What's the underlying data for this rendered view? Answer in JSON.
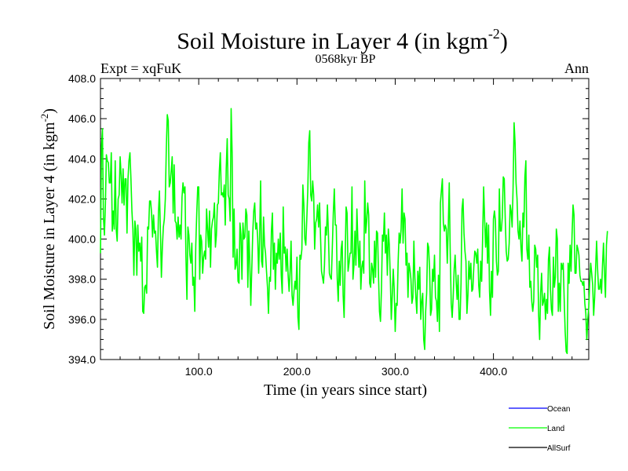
{
  "chart_data": {
    "type": "line",
    "title": "Soil Moisture in Layer 4 (in kgm",
    "title_sup": "-2",
    "title_close": ")",
    "subtitle_left": "Expt = xqFuK",
    "subtitle_center": "0568kyr BP",
    "subtitle_right": "Ann",
    "xlabel": "Time (in years since start)",
    "ylabel": "Soil Moisture in Layer 4 (in kgm",
    "ylabel_sup": "-2",
    "ylabel_close": ")",
    "xlim": [
      0,
      497
    ],
    "ylim": [
      394,
      408
    ],
    "x_ticks": [
      100,
      200,
      300,
      400
    ],
    "x_tick_labels": [
      "100.0",
      "200.0",
      "300.0",
      "400.0"
    ],
    "y_ticks": [
      394,
      396,
      398,
      400,
      402,
      404,
      406,
      408
    ],
    "y_tick_labels": [
      "394.0",
      "396.0",
      "398.0",
      "400.0",
      "402.0",
      "404.0",
      "406.0",
      "408.0"
    ],
    "legend": [
      {
        "name": "Ocean",
        "color": "#0000ff"
      },
      {
        "name": "Land",
        "color": "#00ff00"
      },
      {
        "name": "AllSurf",
        "color": "#000000"
      }
    ],
    "series": [
      {
        "name": "Land",
        "color": "#00ff00",
        "x_start": 0,
        "x_step": 1,
        "values": [
          399.3,
          404.6,
          405.5,
          401.1,
          400.2,
          401.7,
          404.2,
          403.9,
          403.8,
          402.8,
          402.8,
          404.3,
          400.4,
          401.4,
          400.5,
          403.9,
          400.5,
          399.9,
          402.0,
          402.2,
          404.1,
          403.2,
          401.8,
          403.5,
          401.7,
          403.0,
          403.0,
          400.3,
          403.0,
          403.9,
          404.3,
          403.0,
          401.4,
          400.5,
          398.2,
          400.9,
          400.5,
          398.2,
          400.7,
          399.4,
          399.8,
          398.9,
          400.1,
          396.4,
          396.3,
          397.6,
          397.7,
          397.3,
          400.6,
          400.5,
          401.9,
          401.9,
          401.3,
          400.1,
          401.2,
          400.3,
          400.4,
          399.4,
          398.6,
          401.3,
          402.4,
          400.4,
          398.1,
          399.6,
          400.6,
          401.0,
          402.0,
          404.5,
          406.2,
          405.9,
          402.6,
          402.8,
          403.4,
          404.1,
          401.3,
          403.7,
          400.9,
          400.8,
          400.0,
          401.1,
          400.1,
          400.7,
          400.0,
          402.1,
          402.8,
          402.3,
          402.6,
          399.1,
          397.0,
          400.6,
          400.2,
          399.2,
          398.8,
          399.8,
          397.7,
          398.1,
          396.4,
          399.7,
          401.3,
          402.6,
          402.6,
          398.0,
          400.2,
          399.9,
          398.3,
          399.1,
          399.4,
          399.0,
          401.5,
          400.5,
          399.6,
          401.4,
          398.6,
          400.5,
          400.9,
          401.1,
          401.8,
          399.6,
          400.2,
          401.7,
          401.8,
          403.4,
          404.3,
          402.2,
          402.3,
          402.1,
          402.7,
          400.7,
          403.5,
          405.0,
          402.2,
          402.0,
          400.9,
          406.5,
          404.3,
          399.1,
          401.5,
          398.5,
          398.7,
          399.5,
          397.9,
          397.8,
          400.8,
          400.2,
          398.0,
          400.8,
          400.0,
          400.1,
          401.5,
          401.2,
          397.6,
          400.4,
          398.8,
          396.7,
          398.5,
          400.3,
          401.4,
          401.8,
          400.5,
          400.8,
          400.1,
          398.3,
          400.1,
          402.9,
          398.9,
          398.6,
          401.1,
          399.7,
          399.3,
          398.4,
          397.6,
          396.3,
          398.1,
          397.9,
          400.4,
          401.3,
          398.5,
          399.8,
          397.5,
          399.3,
          398.8,
          400.0,
          399.0,
          400.3,
          398.2,
          397.3,
          401.6,
          399.3,
          399.6,
          398.4,
          399.5,
          398.2,
          397.4,
          398.4,
          399.9,
          397.2,
          396.7,
          397.4,
          397.9,
          397.5,
          399.1,
          396.1,
          395.5,
          399.2,
          399.0,
          399.5,
          402.7,
          401.7,
          400.0,
          399.7,
          401.0,
          402.4,
          404.8,
          405.4,
          402.2,
          401.9,
          402.9,
          402.2,
          399.5,
          400.8,
          401.0,
          401.7,
          400.6,
          401.8,
          400.1,
          398.4,
          398.1,
          397.8,
          398.7,
          400.6,
          400.2,
          401.7,
          400.3,
          398.3,
          398.1,
          398.0,
          399.6,
          401.3,
          402.5,
          400.7,
          400.7,
          398.0,
          396.9,
          398.9,
          397.7,
          399.5,
          399.9,
          397.2,
          396.1,
          398.9,
          401.6,
          401.3,
          398.4,
          398.8,
          399.3,
          399.3,
          402.6,
          398.0,
          398.7,
          400.4,
          398.7,
          401.5,
          399.9,
          398.6,
          399.9,
          397.5,
          398.6,
          398.9,
          398.3,
          402.9,
          400.3,
          400.9,
          401.8,
          401.2,
          397.8,
          397.6,
          398.8,
          398.5,
          397.8,
          399.9,
          398.1,
          400.4,
          400.3,
          398.2,
          396.4,
          395.9,
          397.5,
          400.2,
          399.9,
          401.3,
          399.3,
          400.2,
          398.2,
          400.5,
          399.7,
          398.1,
          396.0,
          397.2,
          398.5,
          397.5,
          395.4,
          396.8,
          396.7,
          398.9,
          400.3,
          399.8,
          400.5,
          402.5,
          399.8,
          401.3,
          401.0,
          398.7,
          399.3,
          397.1,
          398.8,
          398.5,
          398.0,
          396.8,
          397.1,
          399.9,
          398.1,
          397.1,
          396.3,
          398.4,
          397.5,
          398.6,
          396.0,
          396.9,
          397.3,
          395.0,
          394.5,
          396.4,
          397.3,
          399.8,
          399.6,
          398.5,
          396.2,
          396.5,
          398.5,
          397.9,
          399.2,
          397.1,
          396.9,
          395.9,
          398.2,
          395.4,
          401.8,
          402.4,
          403.0,
          400.8,
          400.4,
          400.7,
          400.5,
          398.8,
          400.6,
          402.8,
          399.3,
          396.8,
          396.1,
          397.1,
          398.5,
          399.2,
          397.9,
          397.0,
          398.2,
          396.0,
          396.0,
          397.8,
          401.5,
          402.0,
          400.3,
          399.4,
          398.9,
          396.3,
          397.2,
          398.9,
          398.0,
          398.8,
          397.4,
          397.5,
          398.6,
          399.4,
          399.3,
          398.8,
          399.5,
          397.7,
          397.1,
          398.9,
          397.9,
          400.1,
          402.6,
          401.0,
          399.6,
          400.8,
          398.8,
          400.7,
          397.4,
          396.2,
          398.4,
          397.1,
          401.0,
          401.4,
          400.9,
          398.9,
          398.2,
          398.4,
          402.5,
          400.4,
          400.4,
          401.1,
          403.1,
          403.0,
          401.0,
          399.4,
          398.9,
          399.0,
          399.8,
          401.7,
          401.4,
          400.6,
          402.6,
          405.8,
          404.8,
          402.8,
          402.0,
          400.4,
          400.0,
          400.9,
          399.6,
          398.9,
          401.3,
          400.6,
          403.1,
          403.9,
          399.5,
          399.0,
          400.2,
          397.6,
          397.9,
          396.9,
          396.4,
          396.9,
          399.7,
          399.5,
          398.6,
          399.2,
          396.2,
          395.0,
          397.3,
          398.3,
          396.7,
          396.9,
          397.3,
          396.0,
          397.0,
          396.3,
          399.0,
          399.6,
          397.5,
          396.5,
          396.2,
          399.1,
          397.6,
          398.1,
          400.5,
          400.0,
          396.4,
          397.8,
          396.4,
          398.8,
          398.5,
          398.8,
          397.0,
          395.4,
          394.4,
          394.3,
          398.8,
          397.8,
          399.7,
          398.4,
          400.2,
          401.7,
          401.2,
          398.3,
          398.3,
          399.7,
          399.5,
          399.2,
          398.2,
          397.9,
          397.9,
          397.7,
          397.9,
          396.8,
          396.3,
          395.0,
          396.0,
          396.6,
          397.9,
          398.8,
          398.3,
          397.7,
          396.2,
          397.1,
          398.6,
          399.9,
          398.5,
          397.5,
          397.5,
          398.0,
          397.3,
          398.7,
          399.8,
          398.3,
          397.1,
          399.7,
          400.4
        ]
      }
    ]
  }
}
